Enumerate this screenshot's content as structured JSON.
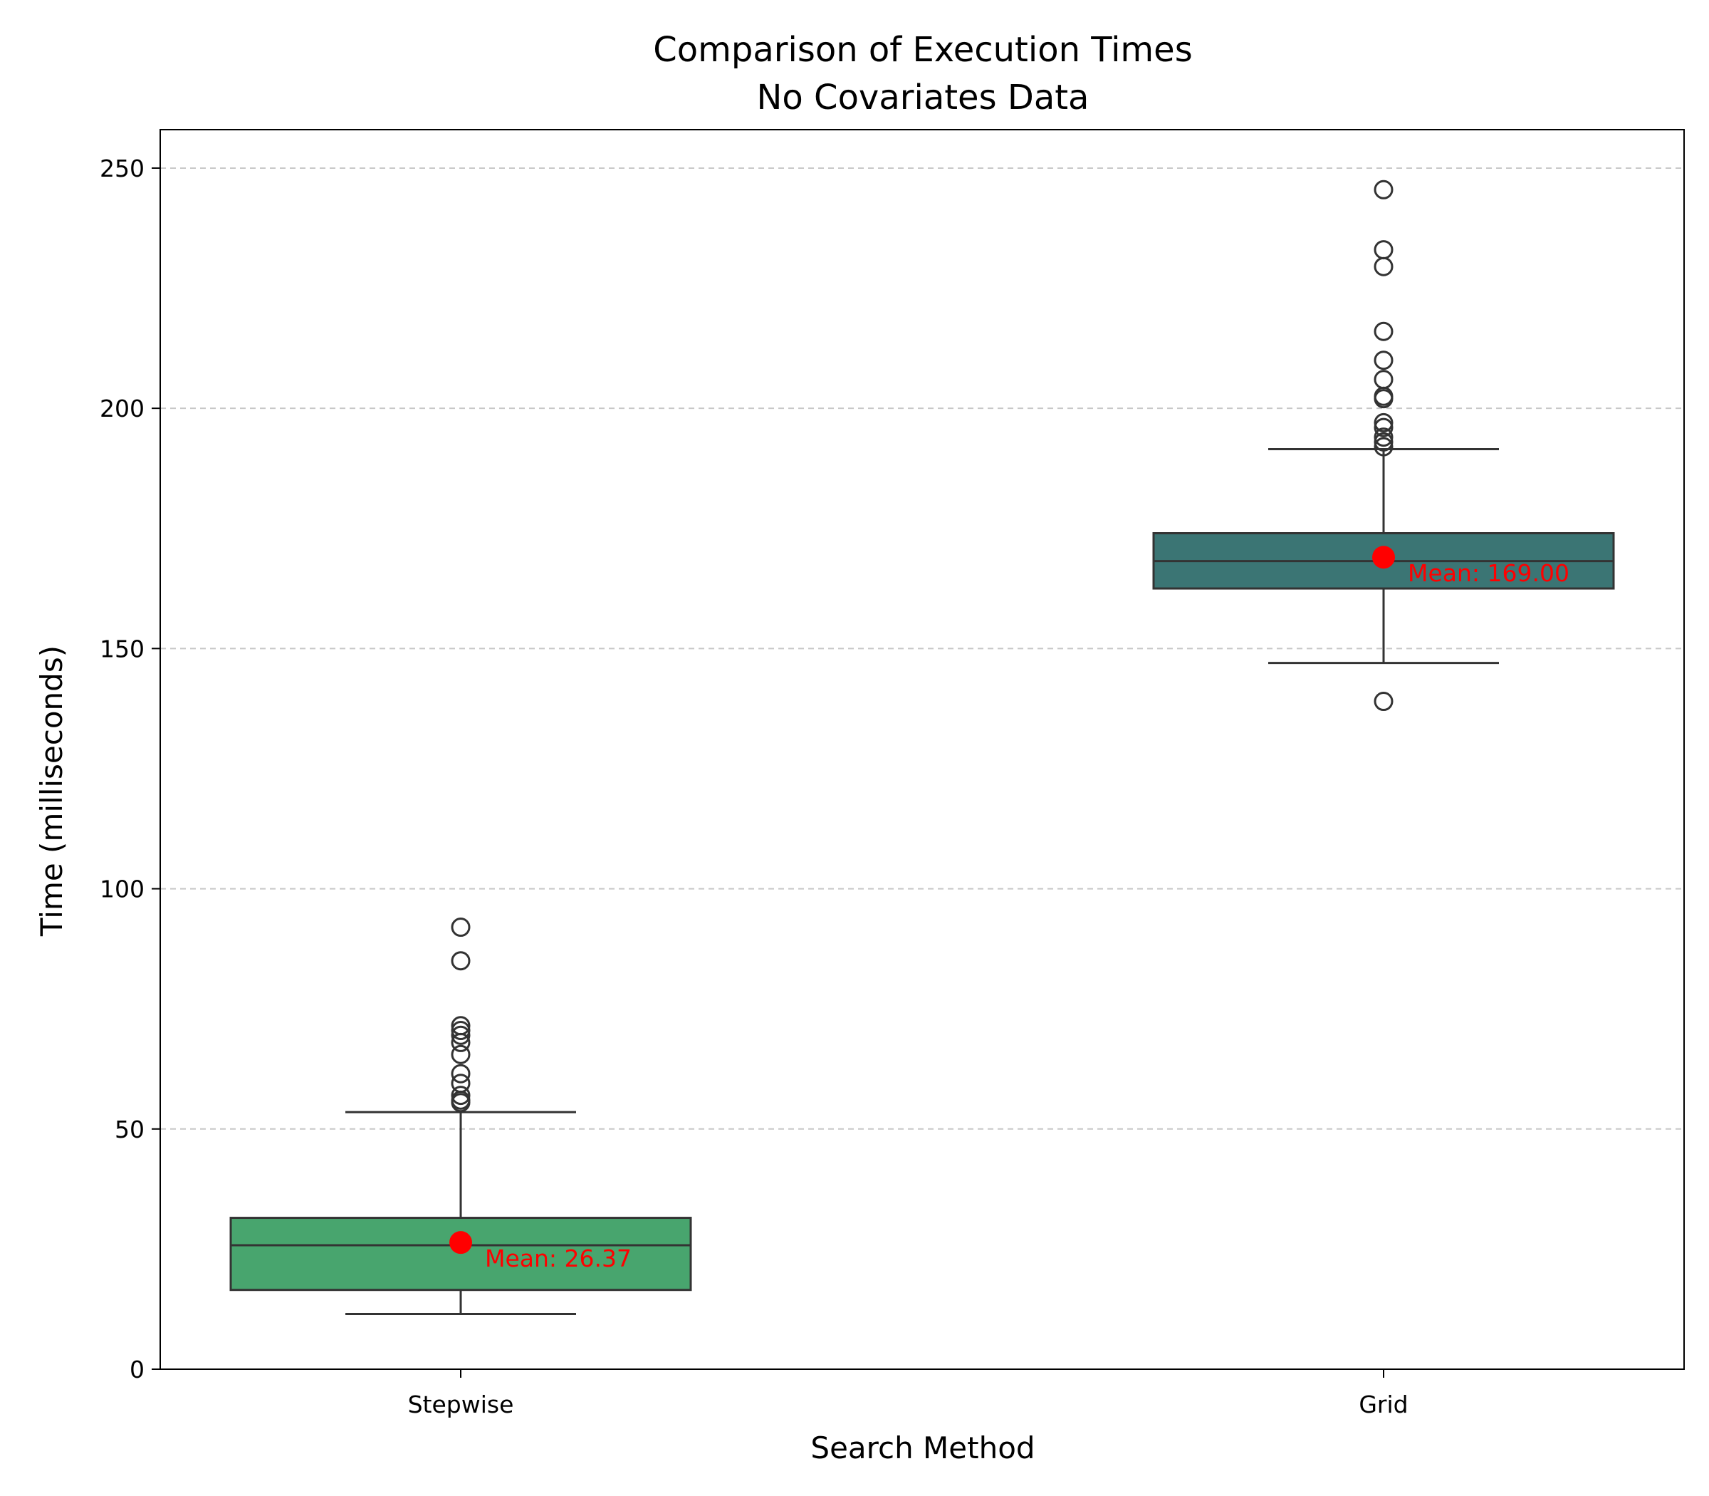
{
  "chart_data": {
    "type": "box",
    "title_lines": [
      "Comparison of Execution Times",
      "No Covariates Data"
    ],
    "xlabel": "Search Method",
    "ylabel": "Time (milliseconds)",
    "ylim": [
      0,
      258
    ],
    "yticks": [
      0,
      50,
      100,
      150,
      200,
      250
    ],
    "grid": "horizontal dashed",
    "categories": [
      "Stepwise",
      "Grid"
    ],
    "boxes": [
      {
        "category": "Stepwise",
        "color": "#48a56e",
        "whisker_low": 11.5,
        "q1": 16.5,
        "median": 25.8,
        "q3": 31.5,
        "whisker_high": 53.5,
        "outliers": [
          55.5,
          56,
          57,
          59.5,
          61.5,
          65.5,
          68,
          69.5,
          70.5,
          71.5,
          85,
          92
        ],
        "mean": 26.37,
        "mean_label": "Mean: 26.37"
      },
      {
        "category": "Grid",
        "color": "#3b7574",
        "whisker_low": 147,
        "q1": 162.5,
        "median": 168.2,
        "q3": 174,
        "whisker_high": 191.5,
        "outliers": [
          139,
          192,
          193,
          194,
          196,
          197,
          202,
          202.5,
          206,
          210,
          216,
          229.5,
          233,
          245.5
        ],
        "mean": 169.0,
        "mean_label": "Mean: 169.00"
      }
    ],
    "mean_marker_color": "#ff0000"
  }
}
